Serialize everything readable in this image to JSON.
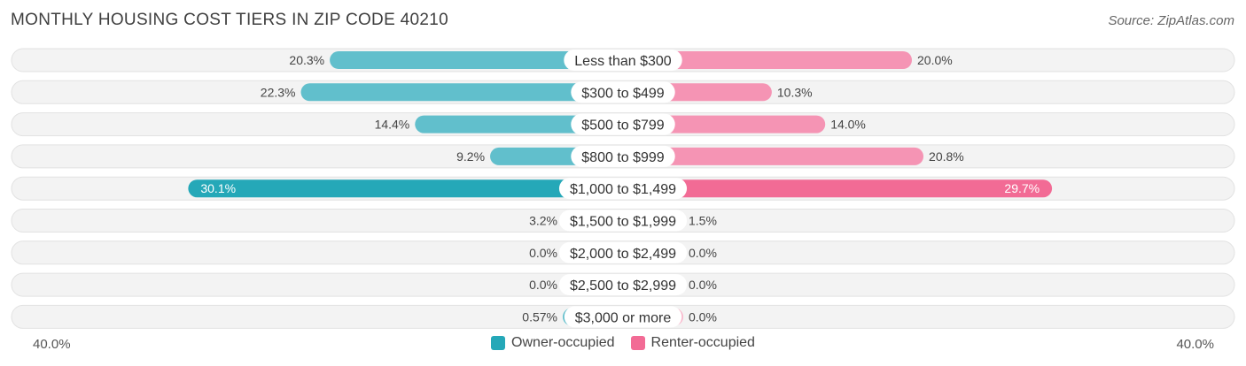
{
  "title": "MONTHLY HOUSING COST TIERS IN ZIP CODE 40210",
  "source": "Source: ZipAtlas.com",
  "axis": {
    "left_label": "40.0%",
    "right_label": "40.0%"
  },
  "legend": {
    "owner_label": "Owner-occupied",
    "renter_label": "Renter-occupied"
  },
  "colors": {
    "owner": "#61bfcc",
    "owner_strong": "#25a8b8",
    "renter": "#f594b4",
    "renter_strong": "#f26b95",
    "owner_empty": "#8fd0da",
    "renter_empty": "#f9b6cb",
    "track": "#f0f0f0"
  },
  "chart_data": {
    "type": "bar",
    "orientation": "diverging-horizontal",
    "xlim": [
      -40,
      40
    ],
    "categories": [
      "Less than $300",
      "$300 to $499",
      "$500 to $799",
      "$800 to $999",
      "$1,000 to $1,499",
      "$1,500 to $1,999",
      "$2,000 to $2,499",
      "$2,500 to $2,999",
      "$3,000 or more"
    ],
    "series": [
      {
        "name": "Owner-occupied",
        "side": "left",
        "values": [
          20.3,
          22.3,
          14.4,
          9.2,
          30.1,
          3.2,
          0.0,
          0.0,
          0.57
        ],
        "labels": [
          "20.3%",
          "22.3%",
          "14.4%",
          "9.2%",
          "30.1%",
          "3.2%",
          "0.0%",
          "0.0%",
          "0.57%"
        ]
      },
      {
        "name": "Renter-occupied",
        "side": "right",
        "values": [
          20.0,
          10.3,
          14.0,
          20.8,
          29.7,
          1.5,
          0.0,
          0.0,
          0.0
        ],
        "labels": [
          "20.0%",
          "10.3%",
          "14.0%",
          "20.8%",
          "29.7%",
          "1.5%",
          "0.0%",
          "0.0%",
          "0.0%"
        ]
      }
    ],
    "highlight_category": "$1,000 to $1,499"
  }
}
